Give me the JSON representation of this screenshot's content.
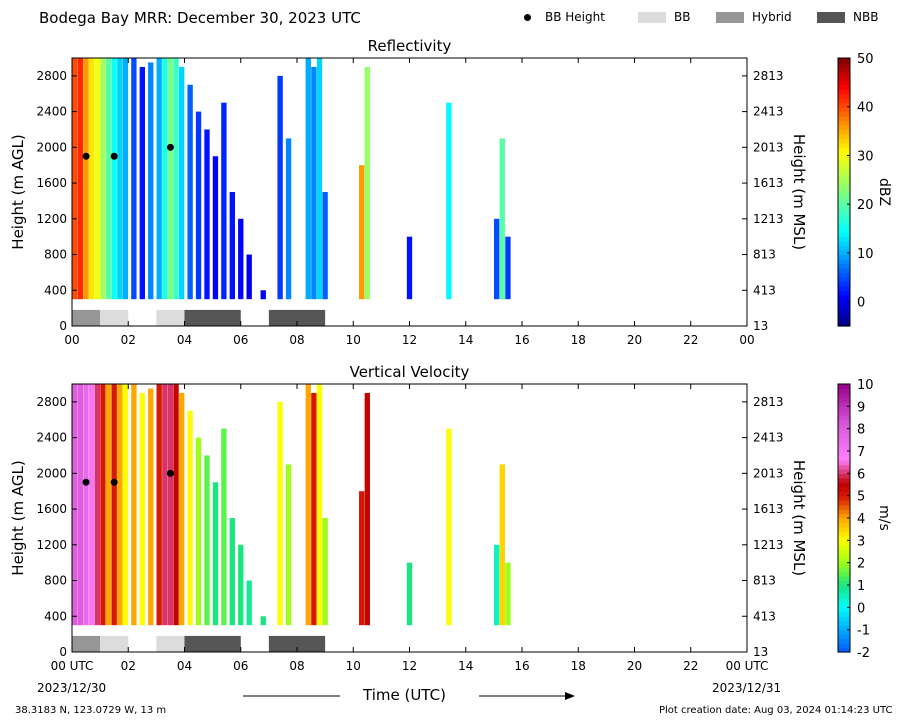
{
  "header": {
    "title": "Bodega Bay MRR:  December 30, 2023 UTC",
    "legend": [
      {
        "label": "BB Height",
        "kind": "dot",
        "color": "#000000"
      },
      {
        "label": "BB",
        "kind": "swatch",
        "color": "#dcdcdc"
      },
      {
        "label": "Hybrid",
        "kind": "swatch",
        "color": "#969696"
      },
      {
        "label": "NBB",
        "kind": "swatch",
        "color": "#555555"
      }
    ]
  },
  "footer": {
    "location": "38.3183 N, 123.0729 W, 13 m",
    "creation": "Plot creation date: Aug 03, 2024 01:14:23 UTC",
    "xaxis_title": "Time (UTC)",
    "date_start": "2023/12/30",
    "date_end": "2023/12/31"
  },
  "chart_data": [
    {
      "type": "heatmap",
      "title": "Reflectivity",
      "ylabel": "Height (m AGL)",
      "ylabel_right": "Height (m MSL)",
      "xlabel": "Time (UTC)",
      "xlim": [
        0,
        24
      ],
      "ylim": [
        0,
        3000
      ],
      "x_ticks": [
        "00",
        "02",
        "04",
        "06",
        "08",
        "10",
        "12",
        "14",
        "16",
        "18",
        "20",
        "22",
        "00"
      ],
      "y_ticks": [
        0,
        400,
        800,
        1200,
        1600,
        2000,
        2400,
        2800
      ],
      "y_ticks_right": [
        13,
        413,
        813,
        1213,
        1613,
        2013,
        2413,
        2813
      ],
      "colorbar": {
        "label": "dBZ",
        "min": -5,
        "max": 50,
        "ticks": [
          0,
          10,
          20,
          30,
          40,
          50
        ]
      },
      "bb_height_points": [
        {
          "x": 0.5,
          "y": 1900
        },
        {
          "x": 1.5,
          "y": 1900
        },
        {
          "x": 3.5,
          "y": 2000
        }
      ],
      "bb_type_segments": [
        {
          "start": 0.0,
          "end": 1.0,
          "type": "Hybrid"
        },
        {
          "start": 1.0,
          "end": 2.0,
          "type": "BB"
        },
        {
          "start": 3.0,
          "end": 4.0,
          "type": "BB"
        },
        {
          "start": 4.0,
          "end": 6.0,
          "type": "NBB"
        },
        {
          "start": 7.0,
          "end": 9.0,
          "type": "NBB"
        }
      ],
      "echo_columns": [
        {
          "x": 0.1,
          "top": 3000,
          "value": 40
        },
        {
          "x": 0.3,
          "top": 3000,
          "value": 42
        },
        {
          "x": 0.5,
          "top": 3000,
          "value": 36
        },
        {
          "x": 0.7,
          "top": 3000,
          "value": 32
        },
        {
          "x": 0.9,
          "top": 3000,
          "value": 30
        },
        {
          "x": 1.1,
          "top": 3000,
          "value": 25
        },
        {
          "x": 1.3,
          "top": 3000,
          "value": 20
        },
        {
          "x": 1.5,
          "top": 3000,
          "value": 15
        },
        {
          "x": 1.7,
          "top": 3000,
          "value": 12
        },
        {
          "x": 1.9,
          "top": 3000,
          "value": 10
        },
        {
          "x": 2.2,
          "top": 3000,
          "value": 5
        },
        {
          "x": 2.5,
          "top": 2900,
          "value": 2
        },
        {
          "x": 2.8,
          "top": 2950,
          "value": 8
        },
        {
          "x": 3.1,
          "top": 3000,
          "value": 10
        },
        {
          "x": 3.3,
          "top": 3000,
          "value": 16
        },
        {
          "x": 3.5,
          "top": 3000,
          "value": 22
        },
        {
          "x": 3.7,
          "top": 3000,
          "value": 18
        },
        {
          "x": 3.9,
          "top": 2900,
          "value": 12
        },
        {
          "x": 4.2,
          "top": 2700,
          "value": 6
        },
        {
          "x": 4.5,
          "top": 2400,
          "value": 4
        },
        {
          "x": 4.8,
          "top": 2200,
          "value": 2
        },
        {
          "x": 5.1,
          "top": 1900,
          "value": 1
        },
        {
          "x": 5.4,
          "top": 2500,
          "value": 3
        },
        {
          "x": 5.7,
          "top": 1500,
          "value": 2
        },
        {
          "x": 6.0,
          "top": 1200,
          "value": 1
        },
        {
          "x": 6.3,
          "top": 800,
          "value": 0
        },
        {
          "x": 6.8,
          "top": 400,
          "value": 1
        },
        {
          "x": 7.4,
          "top": 2800,
          "value": 4
        },
        {
          "x": 7.7,
          "top": 2100,
          "value": 8
        },
        {
          "x": 8.4,
          "top": 3000,
          "value": 10
        },
        {
          "x": 8.6,
          "top": 2900,
          "value": 8
        },
        {
          "x": 8.8,
          "top": 3000,
          "value": 12
        },
        {
          "x": 9.0,
          "top": 1500,
          "value": 6
        },
        {
          "x": 10.3,
          "top": 1800,
          "value": 36
        },
        {
          "x": 10.5,
          "top": 2900,
          "value": 24
        },
        {
          "x": 12.0,
          "top": 1000,
          "value": 2
        },
        {
          "x": 13.4,
          "top": 2500,
          "value": 14
        },
        {
          "x": 15.1,
          "top": 1200,
          "value": 5
        },
        {
          "x": 15.3,
          "top": 2100,
          "value": 20
        },
        {
          "x": 15.5,
          "top": 1000,
          "value": 4
        }
      ]
    },
    {
      "type": "heatmap",
      "title": "Vertical Velocity",
      "ylabel": "Height (m AGL)",
      "ylabel_right": "Height (m MSL)",
      "xlabel": "Time (UTC)",
      "xlim": [
        0,
        24
      ],
      "ylim": [
        0,
        3000
      ],
      "x_ticks": [
        "00 UTC",
        "02",
        "04",
        "06",
        "08",
        "10",
        "12",
        "14",
        "16",
        "18",
        "20",
        "22",
        "00 UTC"
      ],
      "y_ticks": [
        0,
        400,
        800,
        1200,
        1600,
        2000,
        2400,
        2800
      ],
      "y_ticks_right": [
        13,
        413,
        813,
        1213,
        1613,
        2013,
        2413,
        2813
      ],
      "colorbar": {
        "label": "m/s",
        "min": -2,
        "max": 10,
        "ticks": [
          -2,
          -1,
          0,
          1,
          2,
          3,
          4,
          5,
          6,
          7,
          8,
          9,
          10
        ]
      },
      "bb_height_points": [
        {
          "x": 0.5,
          "y": 1900
        },
        {
          "x": 1.5,
          "y": 1900
        },
        {
          "x": 3.5,
          "y": 2000
        }
      ],
      "bb_type_segments": [
        {
          "start": 0.0,
          "end": 1.0,
          "type": "Hybrid"
        },
        {
          "start": 1.0,
          "end": 2.0,
          "type": "BB"
        },
        {
          "start": 3.0,
          "end": 4.0,
          "type": "BB"
        },
        {
          "start": 4.0,
          "end": 6.0,
          "type": "NBB"
        },
        {
          "start": 7.0,
          "end": 9.0,
          "type": "NBB"
        }
      ],
      "echo_columns": [
        {
          "x": 0.1,
          "top": 3000,
          "value": 8
        },
        {
          "x": 0.3,
          "top": 3000,
          "value": 8
        },
        {
          "x": 0.5,
          "top": 3000,
          "value": 7.5
        },
        {
          "x": 0.7,
          "top": 3000,
          "value": 7
        },
        {
          "x": 0.9,
          "top": 3000,
          "value": 6
        },
        {
          "x": 1.1,
          "top": 3000,
          "value": 5
        },
        {
          "x": 1.3,
          "top": 3000,
          "value": 4
        },
        {
          "x": 1.5,
          "top": 3000,
          "value": 5
        },
        {
          "x": 1.7,
          "top": 3000,
          "value": 4
        },
        {
          "x": 1.9,
          "top": 3000,
          "value": 3
        },
        {
          "x": 2.2,
          "top": 3000,
          "value": 4
        },
        {
          "x": 2.5,
          "top": 2900,
          "value": 3
        },
        {
          "x": 2.8,
          "top": 2950,
          "value": 4
        },
        {
          "x": 3.1,
          "top": 3000,
          "value": 5
        },
        {
          "x": 3.3,
          "top": 3000,
          "value": 6
        },
        {
          "x": 3.5,
          "top": 3000,
          "value": 6
        },
        {
          "x": 3.7,
          "top": 3000,
          "value": 5.5
        },
        {
          "x": 3.9,
          "top": 2900,
          "value": 4
        },
        {
          "x": 4.2,
          "top": 2700,
          "value": 3
        },
        {
          "x": 4.5,
          "top": 2400,
          "value": 2
        },
        {
          "x": 4.8,
          "top": 2200,
          "value": 1.5
        },
        {
          "x": 5.1,
          "top": 1900,
          "value": 1
        },
        {
          "x": 5.4,
          "top": 2500,
          "value": 1.5
        },
        {
          "x": 5.7,
          "top": 1500,
          "value": 1
        },
        {
          "x": 6.0,
          "top": 1200,
          "value": 1
        },
        {
          "x": 6.3,
          "top": 800,
          "value": 0.8
        },
        {
          "x": 6.8,
          "top": 400,
          "value": 1
        },
        {
          "x": 7.4,
          "top": 2800,
          "value": 3
        },
        {
          "x": 7.7,
          "top": 2100,
          "value": 2
        },
        {
          "x": 8.4,
          "top": 3000,
          "value": 4
        },
        {
          "x": 8.6,
          "top": 2900,
          "value": 5
        },
        {
          "x": 8.8,
          "top": 3000,
          "value": 3
        },
        {
          "x": 9.0,
          "top": 1500,
          "value": 2
        },
        {
          "x": 10.3,
          "top": 1800,
          "value": 5
        },
        {
          "x": 10.5,
          "top": 2900,
          "value": 5.5
        },
        {
          "x": 12.0,
          "top": 1000,
          "value": 1
        },
        {
          "x": 13.4,
          "top": 2500,
          "value": 3
        },
        {
          "x": 15.1,
          "top": 1200,
          "value": 0.5
        },
        {
          "x": 15.3,
          "top": 2100,
          "value": 3.5
        },
        {
          "x": 15.5,
          "top": 1000,
          "value": 2
        }
      ]
    }
  ]
}
